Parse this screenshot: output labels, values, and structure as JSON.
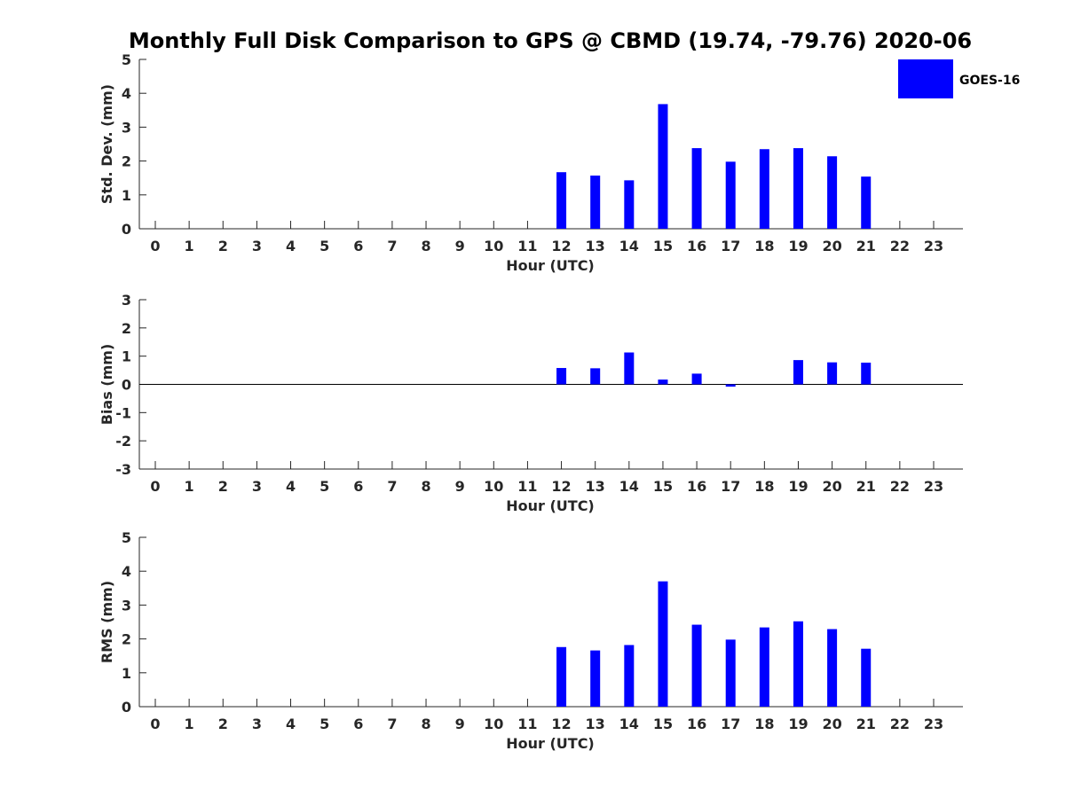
{
  "title": "Monthly Full Disk Comparison to GPS @ CBMD (19.74, -79.76) 2020-06",
  "legend": {
    "label": "GOES-16",
    "color": "#0000FF",
    "placement": "top-right"
  },
  "chart_data": [
    {
      "type": "bar",
      "ylabel": "Std. Dev. (mm)",
      "xlabel": "Hour (UTC)",
      "ylim": [
        0,
        5
      ],
      "yticks": [
        "0",
        "1",
        "2",
        "3",
        "4",
        "5"
      ],
      "categories": [
        "0",
        "1",
        "2",
        "3",
        "4",
        "5",
        "6",
        "7",
        "8",
        "9",
        "10",
        "11",
        "12",
        "13",
        "14",
        "15",
        "16",
        "17",
        "18",
        "19",
        "20",
        "21",
        "22",
        "23"
      ],
      "series": [
        {
          "name": "GOES-16",
          "color": "#0000FF",
          "values": [
            null,
            null,
            null,
            null,
            null,
            null,
            null,
            null,
            null,
            null,
            null,
            null,
            1.67,
            1.57,
            1.43,
            3.68,
            2.38,
            1.98,
            2.35,
            2.38,
            2.14,
            1.54,
            null,
            null
          ]
        }
      ]
    },
    {
      "type": "bar",
      "ylabel": "Bias (mm)",
      "xlabel": "Hour (UTC)",
      "ylim": [
        -3,
        3
      ],
      "yticks": [
        "-3",
        "-2",
        "-1",
        "0",
        "1",
        "2",
        "3"
      ],
      "zero_line": true,
      "categories": [
        "0",
        "1",
        "2",
        "3",
        "4",
        "5",
        "6",
        "7",
        "8",
        "9",
        "10",
        "11",
        "12",
        "13",
        "14",
        "15",
        "16",
        "17",
        "18",
        "19",
        "20",
        "21",
        "22",
        "23"
      ],
      "series": [
        {
          "name": "GOES-16",
          "color": "#0000FF",
          "values": [
            null,
            null,
            null,
            null,
            null,
            null,
            null,
            null,
            null,
            null,
            null,
            null,
            0.58,
            0.57,
            1.13,
            0.17,
            0.38,
            -0.08,
            0.0,
            0.86,
            0.78,
            0.77,
            null,
            null
          ]
        }
      ]
    },
    {
      "type": "bar",
      "ylabel": "RMS (mm)",
      "xlabel": "Hour (UTC)",
      "ylim": [
        0,
        5
      ],
      "yticks": [
        "0",
        "1",
        "2",
        "3",
        "4",
        "5"
      ],
      "categories": [
        "0",
        "1",
        "2",
        "3",
        "4",
        "5",
        "6",
        "7",
        "8",
        "9",
        "10",
        "11",
        "12",
        "13",
        "14",
        "15",
        "16",
        "17",
        "18",
        "19",
        "20",
        "21",
        "22",
        "23"
      ],
      "series": [
        {
          "name": "GOES-16",
          "color": "#0000FF",
          "values": [
            null,
            null,
            null,
            null,
            null,
            null,
            null,
            null,
            null,
            null,
            null,
            null,
            1.76,
            1.66,
            1.82,
            3.7,
            2.42,
            1.98,
            2.34,
            2.52,
            2.29,
            1.71,
            null,
            null
          ]
        }
      ]
    }
  ]
}
